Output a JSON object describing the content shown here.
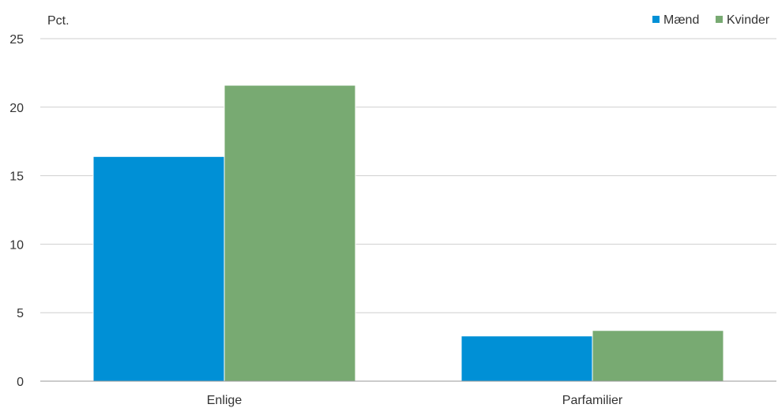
{
  "chart_data": {
    "type": "bar",
    "title": "",
    "xlabel": "",
    "ylabel": "Pct.",
    "categories": [
      "Enlige",
      "Parfamilier"
    ],
    "series": [
      {
        "name": "Mænd",
        "color": "#0090D6",
        "values": [
          16.4,
          3.3
        ]
      },
      {
        "name": "Kvinder",
        "color": "#78AA72",
        "values": [
          21.6,
          3.7
        ]
      }
    ],
    "ylim": [
      0,
      25
    ],
    "yticks": [
      0,
      5,
      10,
      15,
      20,
      25
    ],
    "grid": true,
    "legend_position": "top-right"
  }
}
